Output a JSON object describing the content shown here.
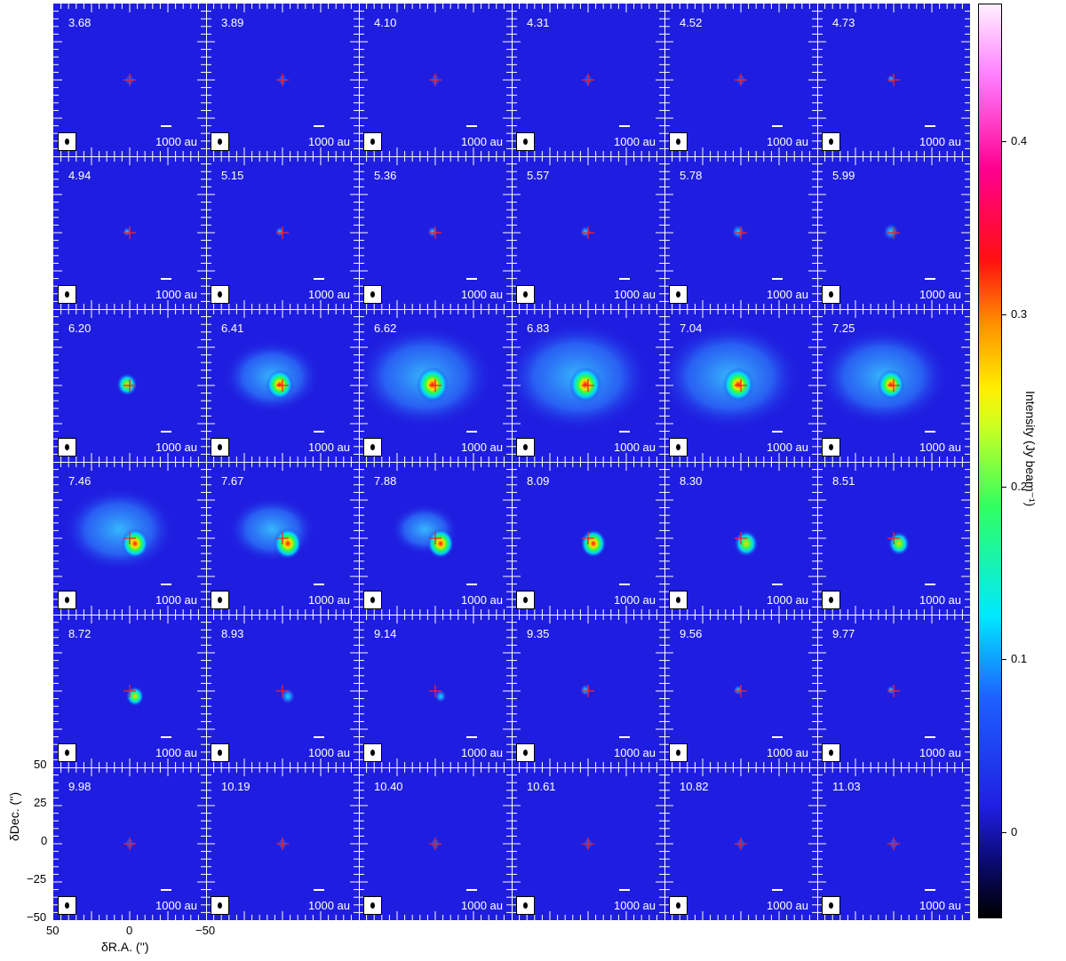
{
  "figure": {
    "velocities": [
      "3.68",
      "3.89",
      "4.10",
      "4.31",
      "4.52",
      "4.73",
      "4.94",
      "5.15",
      "5.36",
      "5.57",
      "5.78",
      "5.99",
      "6.20",
      "6.41",
      "6.62",
      "6.83",
      "7.04",
      "7.25",
      "7.46",
      "7.67",
      "7.88",
      "8.09",
      "8.30",
      "8.51",
      "8.72",
      "8.93",
      "9.14",
      "9.35",
      "9.56",
      "9.77",
      "9.98",
      "10.19",
      "10.40",
      "10.61",
      "10.82",
      "11.03"
    ],
    "scale_label": "1000 au",
    "emission_strength": [
      0.0,
      0.0,
      0.01,
      0.01,
      0.02,
      0.03,
      0.05,
      0.08,
      0.12,
      0.15,
      0.25,
      0.35,
      0.55,
      0.8,
      1.0,
      1.0,
      0.95,
      0.8,
      0.8,
      0.85,
      0.8,
      0.75,
      0.7,
      0.6,
      0.45,
      0.32,
      0.2,
      0.15,
      0.1,
      0.05,
      0.02,
      0.01,
      0.01,
      0.01,
      0.0,
      0.0
    ],
    "extended_emission": [
      0,
      0,
      0,
      0,
      0,
      0,
      0,
      0,
      0,
      0,
      0,
      0,
      0,
      0.45,
      0.85,
      0.95,
      0.9,
      0.8,
      0.6,
      0.35,
      0.15,
      0,
      0,
      0,
      0,
      0,
      0,
      0,
      0,
      0,
      0,
      0,
      0,
      0,
      0,
      0
    ],
    "colors": {
      "background": "#1f1ee0",
      "marker": "#ff2020",
      "grid": "#ffffff"
    }
  },
  "axes": {
    "ylabel": "δDec. ('')",
    "xlabel": "δR.A. ('')",
    "yticks": [
      "50",
      "25",
      "0",
      "−25",
      "−50"
    ],
    "xticks": [
      "50",
      "0",
      "−50"
    ]
  },
  "colorbar": {
    "title": "Intensity (Jy beam⁻¹)",
    "ticks": [
      "0.4",
      "0.3",
      "0.2",
      "0.1",
      "0"
    ],
    "tick_values": [
      0.4,
      0.3,
      0.2,
      0.1,
      0.0
    ],
    "range": [
      -0.05,
      0.48
    ]
  }
}
